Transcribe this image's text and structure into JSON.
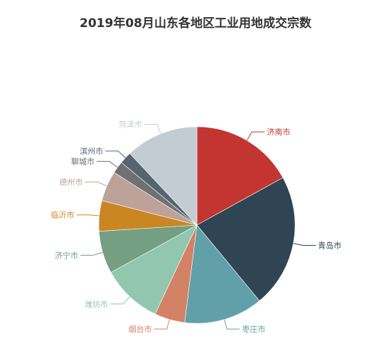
{
  "chart_data": {
    "type": "pie",
    "title": "2019年08月山东各地区工业用地成交宗数",
    "legend": "none",
    "slices": [
      {
        "name": "济南市",
        "value": 17,
        "color": "#c23531"
      },
      {
        "name": "青岛市",
        "value": 22,
        "color": "#2f4554"
      },
      {
        "name": "枣庄市",
        "value": 13,
        "color": "#61a0a8"
      },
      {
        "name": "烟台市",
        "value": 5,
        "color": "#d48265"
      },
      {
        "name": "潍坊市",
        "value": 10,
        "color": "#91c7ae"
      },
      {
        "name": "济宁市",
        "value": 7,
        "color": "#749f83"
      },
      {
        "name": "临沂市",
        "value": 5,
        "color": "#ca8622"
      },
      {
        "name": "德州市",
        "value": 5,
        "color": "#bda29a"
      },
      {
        "name": "聊城市",
        "value": 2,
        "color": "#6e7074"
      },
      {
        "name": "滨州市",
        "value": 2,
        "color": "#546570"
      },
      {
        "name": "菏泽市",
        "value": 12,
        "color": "#c4ccd3"
      }
    ]
  }
}
